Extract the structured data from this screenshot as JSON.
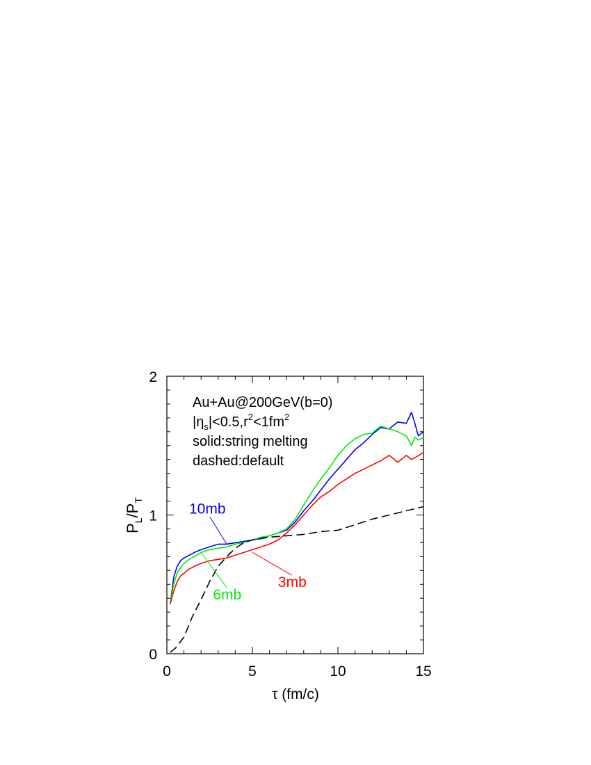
{
  "chart_data": {
    "type": "line",
    "xlabel": "τ (fm/c)",
    "ylabel_parts": [
      "P",
      "L",
      "/P",
      "T"
    ],
    "xlim": [
      0,
      15
    ],
    "ylim": [
      0,
      2
    ],
    "xticks": [
      0,
      5,
      10,
      15
    ],
    "yticks": [
      0,
      1,
      2
    ],
    "grid": false,
    "annotation_lines": [
      [
        "Au+Au@200GeV(b=0)"
      ],
      [
        "|η",
        "s",
        "|<0.5,r",
        "2",
        "<1fm",
        "2"
      ],
      [
        "solid:string melting"
      ],
      [
        "dashed:default"
      ]
    ],
    "series": [
      {
        "name": "10mb",
        "color": "#0000ff",
        "dashed": false,
        "x": [
          0.2,
          0.4,
          0.6,
          0.8,
          1.0,
          1.3,
          1.6,
          2.0,
          2.5,
          3.0,
          3.5,
          4.0,
          4.5,
          5.0,
          5.5,
          6.0,
          6.5,
          7.0,
          7.5,
          8.0,
          8.5,
          9.0,
          9.5,
          10.0,
          10.5,
          11.0,
          11.5,
          12.0,
          12.5,
          13.0,
          13.5,
          14.0,
          14.3,
          14.5,
          14.7,
          15.0
        ],
        "y": [
          0.36,
          0.55,
          0.63,
          0.67,
          0.69,
          0.71,
          0.73,
          0.75,
          0.77,
          0.79,
          0.79,
          0.8,
          0.81,
          0.82,
          0.83,
          0.85,
          0.87,
          0.89,
          0.95,
          1.03,
          1.1,
          1.18,
          1.26,
          1.33,
          1.4,
          1.47,
          1.52,
          1.58,
          1.63,
          1.62,
          1.67,
          1.66,
          1.74,
          1.66,
          1.57,
          1.6
        ]
      },
      {
        "name": "6mb",
        "color": "#00ee00",
        "dashed": false,
        "x": [
          0.2,
          0.4,
          0.6,
          0.8,
          1.0,
          1.3,
          1.6,
          2.0,
          2.5,
          3.0,
          3.5,
          4.0,
          4.5,
          5.0,
          5.5,
          6.0,
          6.5,
          7.0,
          7.5,
          8.0,
          8.5,
          9.0,
          9.5,
          10.0,
          10.5,
          11.0,
          11.5,
          12.0,
          12.5,
          13.0,
          13.5,
          14.0,
          14.3,
          14.5,
          14.7,
          15.0
        ],
        "y": [
          0.37,
          0.5,
          0.58,
          0.62,
          0.65,
          0.68,
          0.7,
          0.73,
          0.75,
          0.76,
          0.77,
          0.79,
          0.8,
          0.82,
          0.84,
          0.85,
          0.87,
          0.9,
          0.97,
          1.07,
          1.17,
          1.26,
          1.34,
          1.43,
          1.5,
          1.55,
          1.58,
          1.59,
          1.64,
          1.62,
          1.6,
          1.57,
          1.5,
          1.56,
          1.54,
          1.56
        ]
      },
      {
        "name": "3mb",
        "color": "#ff0000",
        "dashed": false,
        "x": [
          0.2,
          0.4,
          0.6,
          0.8,
          1.0,
          1.3,
          1.6,
          2.0,
          2.5,
          3.0,
          3.5,
          4.0,
          4.5,
          5.0,
          5.5,
          6.0,
          6.5,
          7.0,
          7.5,
          8.0,
          8.5,
          9.0,
          9.5,
          10.0,
          10.5,
          11.0,
          11.5,
          12.0,
          12.5,
          13.0,
          13.5,
          14.0,
          14.3,
          14.6,
          15.0
        ],
        "y": [
          0.36,
          0.45,
          0.52,
          0.56,
          0.58,
          0.61,
          0.63,
          0.65,
          0.67,
          0.68,
          0.69,
          0.71,
          0.73,
          0.75,
          0.77,
          0.79,
          0.82,
          0.87,
          0.93,
          1.0,
          1.07,
          1.13,
          1.17,
          1.22,
          1.26,
          1.3,
          1.33,
          1.36,
          1.39,
          1.43,
          1.38,
          1.43,
          1.4,
          1.42,
          1.45
        ]
      },
      {
        "name": "",
        "color": "#000000",
        "dashed": true,
        "x": [
          0.2,
          0.5,
          1.0,
          1.5,
          2.0,
          2.5,
          3.0,
          3.5,
          4.0,
          4.5,
          5.0,
          5.5,
          6.0,
          7.0,
          8.0,
          9.0,
          10.0,
          11.0,
          12.0,
          13.0,
          14.0,
          15.0
        ],
        "y": [
          0.01,
          0.04,
          0.12,
          0.27,
          0.39,
          0.52,
          0.63,
          0.7,
          0.76,
          0.8,
          0.82,
          0.83,
          0.84,
          0.85,
          0.86,
          0.88,
          0.89,
          0.93,
          0.97,
          1.0,
          1.03,
          1.06
        ]
      }
    ],
    "labels": [
      {
        "text": "10mb",
        "color": "#0000ff",
        "series": "10mb",
        "at": [
          1.3,
          1.01
        ],
        "pointer_to": [
          3.5,
          0.79
        ]
      },
      {
        "text": "6mb",
        "color": "#00ee00",
        "series": "6mb",
        "at": [
          2.7,
          0.39
        ],
        "pointer_to": [
          2.0,
          0.73
        ]
      },
      {
        "text": "3mb",
        "color": "#ff0000",
        "series": "3mb",
        "at": [
          6.5,
          0.48
        ],
        "pointer_to": [
          5.0,
          0.73
        ]
      }
    ]
  }
}
